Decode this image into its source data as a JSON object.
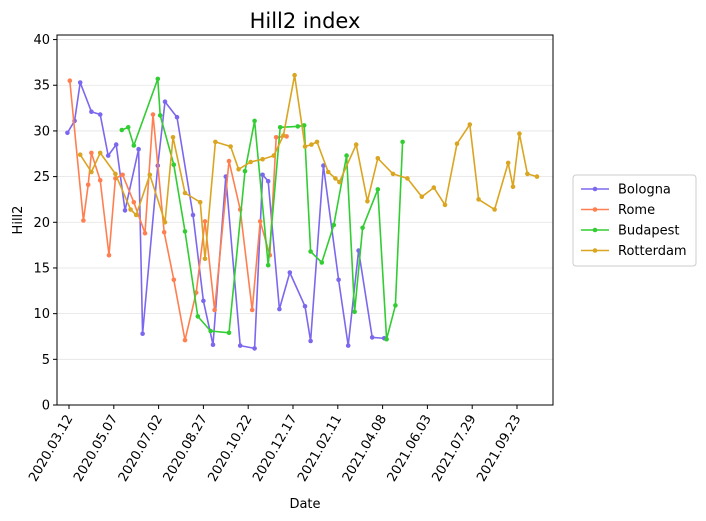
{
  "chart_data": {
    "type": "line",
    "title": "Hill2 index",
    "xlabel": "Date",
    "ylabel": "Hill2",
    "x_type": "date",
    "xlim": [
      "2020-02-26",
      "2021-11-07"
    ],
    "ylim": [
      0,
      40.5
    ],
    "xticks": [
      "2020-03-12",
      "2020-05-07",
      "2020-07-02",
      "2020-08-27",
      "2020-10-22",
      "2020-12-17",
      "2021-02-11",
      "2021-04-08",
      "2021-06-03",
      "2021-07-29",
      "2021-09-23"
    ],
    "yticks": [
      0,
      5,
      10,
      15,
      20,
      25,
      30,
      35,
      40
    ],
    "grid": "horizontal",
    "legend_position": "right",
    "series": [
      {
        "name": "Bologna",
        "color": "#7b68ee",
        "x": [
          "2020-03-10",
          "2020-03-19",
          "2020-03-26",
          "2020-04-09",
          "2020-04-20",
          "2020-04-30",
          "2020-05-10",
          "2020-05-21",
          "2020-06-07",
          "2020-06-12",
          "2020-07-01",
          "2020-07-10",
          "2020-07-25",
          "2020-08-14",
          "2020-08-27",
          "2020-09-08",
          "2020-09-24",
          "2020-10-12",
          "2020-10-30",
          "2020-11-09",
          "2020-11-16",
          "2020-11-30",
          "2020-12-13",
          "2021-01-01",
          "2021-01-08",
          "2021-01-24",
          "2021-02-12",
          "2021-02-24",
          "2021-03-09",
          "2021-03-26",
          "2021-04-10"
        ],
        "y": [
          29.8,
          31.1,
          35.3,
          32.1,
          31.8,
          27.3,
          28.5,
          21.3,
          28.0,
          7.8,
          26.2,
          33.2,
          31.5,
          20.8,
          11.4,
          6.6,
          25.0,
          6.5,
          6.2,
          25.2,
          24.5,
          10.5,
          14.5,
          10.8,
          7.0,
          26.2,
          13.7,
          6.5,
          16.9,
          7.4,
          7.3
        ]
      },
      {
        "name": "Rome",
        "color": "#ff7f50",
        "x": [
          "2020-03-13",
          "2020-03-30",
          "2020-04-05",
          "2020-04-09",
          "2020-04-20",
          "2020-05-01",
          "2020-05-09",
          "2020-05-18",
          "2020-06-01",
          "2020-06-15",
          "2020-06-25",
          "2020-07-09",
          "2020-07-21",
          "2020-08-04",
          "2020-08-18",
          "2020-08-29",
          "2020-09-10",
          "2020-09-28",
          "2020-10-12",
          "2020-10-27",
          "2020-11-06",
          "2020-11-18",
          "2020-11-26",
          "2020-12-09"
        ],
        "y": [
          35.5,
          20.2,
          24.1,
          27.6,
          24.6,
          16.4,
          24.8,
          25.2,
          22.2,
          18.8,
          31.8,
          18.9,
          13.7,
          7.1,
          12.3,
          20.1,
          10.4,
          26.7,
          21.4,
          10.4,
          20.1,
          16.4,
          29.3,
          29.4
        ]
      },
      {
        "name": "Budapest",
        "color": "#32cd32",
        "x": [
          "2020-05-17",
          "2020-05-25",
          "2020-06-01",
          "2020-07-01",
          "2020-07-04",
          "2020-07-21",
          "2020-08-04",
          "2020-08-20",
          "2020-09-05",
          "2020-09-28",
          "2020-10-18",
          "2020-10-30",
          "2020-11-16",
          "2020-12-01",
          "2020-12-23",
          "2020-12-31",
          "2021-01-08",
          "2021-01-22",
          "2021-02-06",
          "2021-02-22",
          "2021-03-04",
          "2021-03-14",
          "2021-04-02",
          "2021-04-13",
          "2021-04-24",
          "2021-05-03"
        ],
        "y": [
          30.1,
          30.4,
          28.4,
          35.7,
          31.7,
          26.3,
          19.0,
          9.7,
          8.1,
          7.9,
          25.6,
          31.1,
          15.3,
          30.4,
          30.5,
          30.6,
          16.8,
          15.6,
          19.7,
          27.3,
          10.2,
          19.4,
          23.6,
          7.2,
          10.9,
          28.8
        ]
      },
      {
        "name": "Rotterdam",
        "color": "#daa520",
        "x": [
          "2020-03-26",
          "2020-04-09",
          "2020-04-20",
          "2020-05-09",
          "2020-05-28",
          "2020-06-04",
          "2020-06-21",
          "2020-07-10",
          "2020-07-20",
          "2020-08-04",
          "2020-08-23",
          "2020-08-29",
          "2020-09-11",
          "2020-09-30",
          "2020-10-10",
          "2020-10-25",
          "2020-11-09",
          "2020-11-23",
          "2020-12-05",
          "2020-12-19",
          "2021-01-01",
          "2021-01-09",
          "2021-01-16",
          "2021-01-30",
          "2021-02-08",
          "2021-02-13",
          "2021-03-06",
          "2021-03-20",
          "2021-04-02",
          "2021-04-21",
          "2021-05-09",
          "2021-05-27",
          "2021-06-11",
          "2021-06-25",
          "2021-07-10",
          "2021-07-26",
          "2021-08-06",
          "2021-08-26",
          "2021-09-12",
          "2021-09-18",
          "2021-09-26",
          "2021-10-06",
          "2021-10-18"
        ],
        "y": [
          27.4,
          25.5,
          27.6,
          25.3,
          21.4,
          20.8,
          25.2,
          20.0,
          29.3,
          23.2,
          22.2,
          16.0,
          28.8,
          28.3,
          25.8,
          26.6,
          26.9,
          27.3,
          29.5,
          36.1,
          28.3,
          28.5,
          28.8,
          25.5,
          24.8,
          24.4,
          28.5,
          22.3,
          27.0,
          25.3,
          24.8,
          22.8,
          23.8,
          21.9,
          28.6,
          30.7,
          22.5,
          21.4,
          26.5,
          23.9,
          29.7,
          25.3,
          25.0
        ]
      }
    ]
  }
}
